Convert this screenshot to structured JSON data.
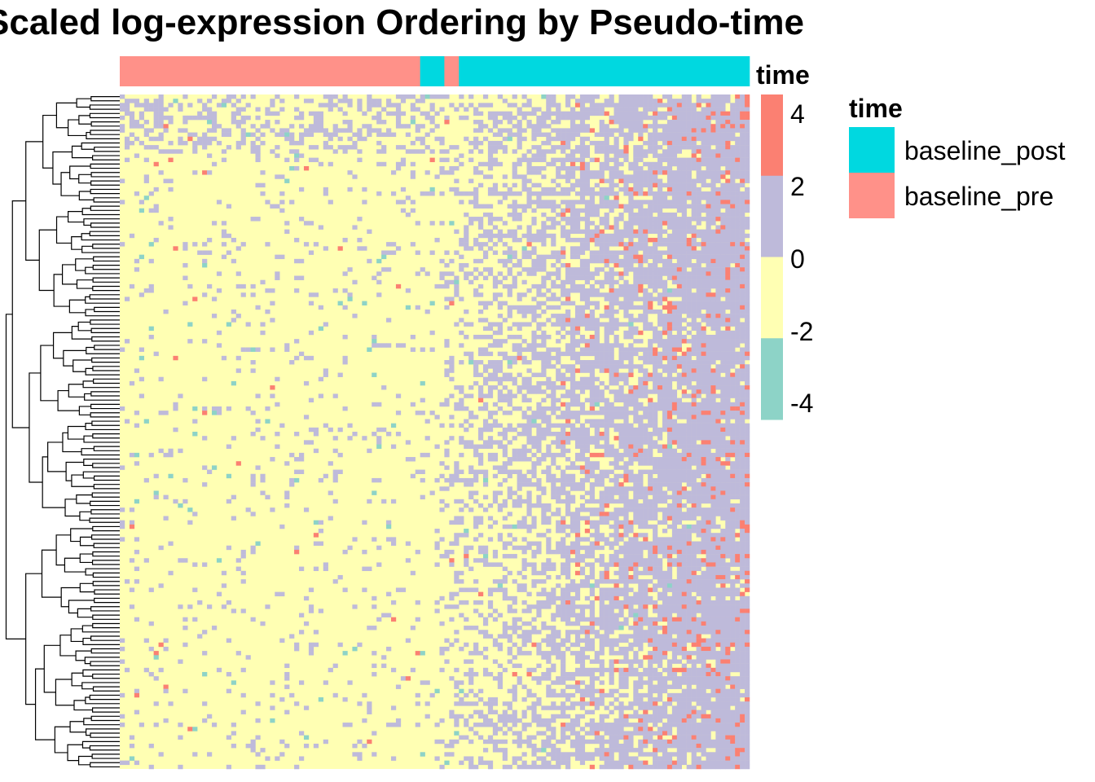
{
  "chart_data": {
    "type": "heatmap",
    "title": "Scaled log-expression Ordering by Pseudo-time",
    "subtitle": "",
    "xlabel": "",
    "ylabel": "",
    "row_dendrogram": true,
    "n_rows": 160,
    "n_cols": 130,
    "color_scale": {
      "title": "",
      "range": [
        -4.5,
        4.5
      ],
      "breaks": [
        -4.5,
        -2.25,
        0,
        2.25,
        4.5
      ],
      "colors": [
        "#8DD3C7",
        "#FFFFB3",
        "#BEBADA",
        "#FB8072"
      ],
      "tick_labels": [
        "4",
        "2",
        "0",
        "-2",
        "-4"
      ]
    },
    "column_annotation": {
      "name": "time",
      "segments": [
        {
          "level": "baseline_pre",
          "count": 62
        },
        {
          "level": "baseline_post",
          "count": 5
        },
        {
          "level": "baseline_pre",
          "count": 3
        },
        {
          "level": "baseline_post",
          "count": 60
        }
      ]
    },
    "legend": {
      "title": "time",
      "placement": "right",
      "entries": [
        {
          "label": "baseline_post",
          "color": "#00D8E0"
        },
        {
          "label": "baseline_pre",
          "color": "#FF9189"
        }
      ]
    },
    "pattern": {
      "note_free": true,
      "early_columns_mostly": "low",
      "late_columns_mostly": "mid-high"
    }
  }
}
